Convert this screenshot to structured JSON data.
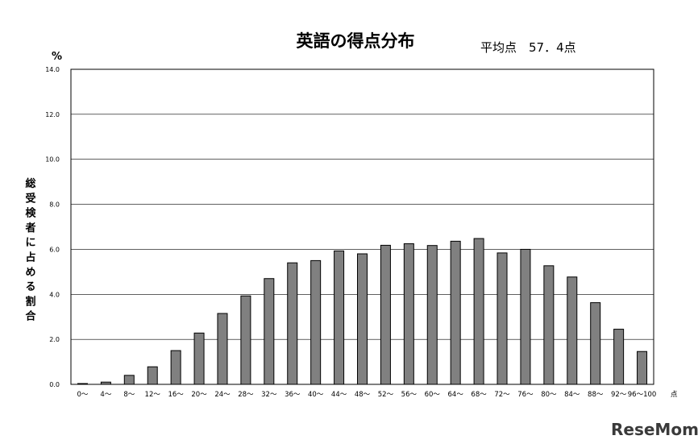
{
  "chart_data": {
    "type": "bar",
    "title": "英語の得点分布",
    "subtitle": "平均点　57．4点",
    "y_unit": "%",
    "ylabel": "総受検者に占める割合",
    "x_unit": "点",
    "ylim": [
      0,
      14
    ],
    "yticks": [
      "0.0",
      "2.0",
      "4.0",
      "6.0",
      "8.0",
      "10.0",
      "12.0",
      "14.0"
    ],
    "grid": true,
    "categories": [
      "0～",
      "4～",
      "8～",
      "12～",
      "16～",
      "20～",
      "24～",
      "28～",
      "32～",
      "36～",
      "40～",
      "44～",
      "48～",
      "52～",
      "56～",
      "60～",
      "64～",
      "68～",
      "72～",
      "76～",
      "80～",
      "84～",
      "88～",
      "92～",
      "96～100"
    ],
    "values": [
      0.02,
      0.1,
      0.4,
      0.78,
      1.5,
      2.28,
      3.15,
      3.93,
      4.7,
      5.4,
      5.5,
      5.93,
      5.8,
      6.18,
      6.25,
      6.17,
      6.36,
      6.48,
      5.84,
      6.0,
      5.27,
      4.77,
      3.63,
      2.45,
      1.46
    ]
  },
  "watermark": "ReseMom"
}
